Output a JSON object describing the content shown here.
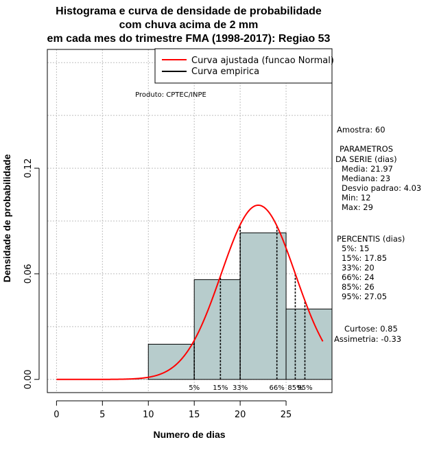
{
  "chart_data": {
    "type": "bar",
    "title_lines": [
      "Histograma e curva de densidade de probabilidade",
      "com chuva acima de 2 mm",
      "em cada mes do trimestre FMA (1998-2017): Regiao 53"
    ],
    "xlabel": "Numero de dias",
    "ylabel": "Densidade de probabilidade",
    "xlim": [
      -1,
      30
    ],
    "ylim": [
      -0.0075,
      0.1875
    ],
    "x_ticks": [
      0,
      5,
      10,
      15,
      20,
      25
    ],
    "y_ticks": [
      0.0,
      0.06,
      0.12
    ],
    "y_tick_labels": [
      "0.00",
      "0.06",
      "0.12"
    ],
    "grid": true,
    "bins": [
      {
        "x0": 10,
        "x1": 15,
        "value": 0.02
      },
      {
        "x0": 15,
        "x1": 20,
        "value": 0.0567
      },
      {
        "x0": 20,
        "x1": 25,
        "value": 0.0833
      },
      {
        "x0": 25,
        "x1": 30,
        "value": 0.04
      }
    ],
    "normal_curve": {
      "mean": 21.97,
      "sd": 4.03,
      "x_range": [
        0,
        29
      ]
    },
    "percentiles": [
      {
        "label": "5%",
        "x": 15
      },
      {
        "label": "15%",
        "x": 17.85
      },
      {
        "label": "33%",
        "x": 20
      },
      {
        "label": "66%",
        "x": 24
      },
      {
        "label": "85%",
        "x": 26
      },
      {
        "label": "95%",
        "x": 27.05
      }
    ],
    "legend": {
      "position": "top-right",
      "entries": [
        {
          "label": "Curva ajustada (funcao Normal)",
          "color": "#ff0000"
        },
        {
          "label": "Curva empirica",
          "color": "#000000"
        }
      ]
    },
    "product_label": "Produto: CPTEC/INPE",
    "stats": {
      "amostra": "Amostra: 60",
      "params_title_1": "PARAMETROS",
      "params_title_2": "DA SERIE (dias)",
      "media": "Media: 21.97",
      "mediana": "Mediana: 23",
      "desvio": "Desvio padrao: 4.03",
      "min": "Min: 12",
      "max": "Max: 29",
      "percentis_title": "PERCENTIS (dias)",
      "p5": "5%: 15",
      "p15": "15%: 17.85",
      "p33": "33%: 20",
      "p66": "66%: 24",
      "p85": "85%: 26",
      "p95": "95%: 27.05",
      "curtose": "Curtose: 0.85",
      "assimetria": "Assimetria: -0.33"
    },
    "colors": {
      "bar_fill": "#b7cccc",
      "curve": "#ff0000",
      "grid": "#bfbfbf"
    }
  }
}
